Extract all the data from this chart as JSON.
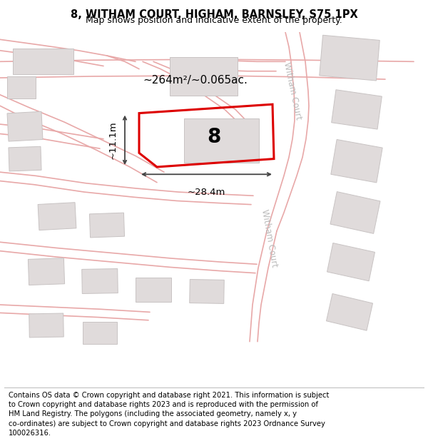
{
  "title": "8, WITHAM COURT, HIGHAM, BARNSLEY, S75 1PX",
  "subtitle": "Map shows position and indicative extent of the property.",
  "footer": "Contains OS data © Crown copyright and database right 2021. This information is subject to Crown copyright and database rights 2023 and is reproduced with the permission of HM Land Registry. The polygons (including the associated geometry, namely x, y co-ordinates) are subject to Crown copyright and database rights 2023 Ordnance Survey 100026316.",
  "map_bg": "#ffffff",
  "road_color": "#f2c4c4",
  "road_line_color": "#e8a8a8",
  "building_color": "#e0dbdb",
  "building_edge": "#c8c3c3",
  "plot_outline_color": "#dd0000",
  "plot_label": "8",
  "area_label": "~264m²/~0.065ac.",
  "width_label": "~28.4m",
  "height_label": "~11.1m",
  "street_label": "Witham Court",
  "title_fontsize": 10.5,
  "subtitle_fontsize": 9,
  "footer_fontsize": 7.2
}
